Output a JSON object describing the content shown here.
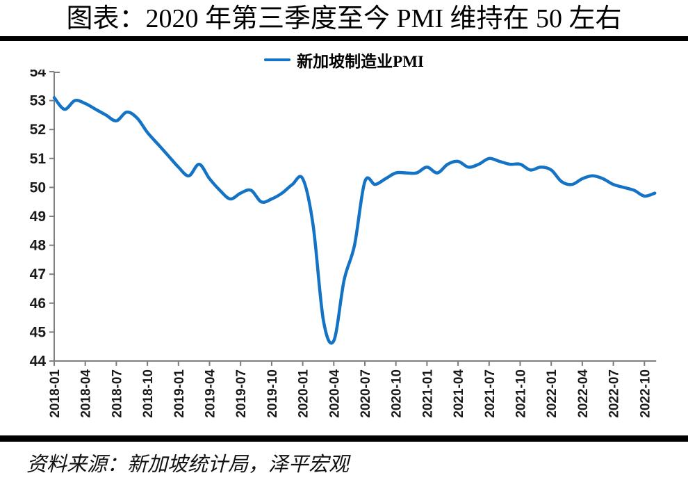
{
  "title": "图表：2020 年第三季度至今 PMI 维持在 50 左右",
  "legend": {
    "label": "新加坡制造业PMI"
  },
  "source": {
    "text": "资料来源：新加坡统计局，泽平宏观"
  },
  "colors": {
    "line": "#1473C4",
    "axis": "#7F7F7F",
    "tick_label": "#1A1A1A",
    "rule": "#000000"
  },
  "chart_data": {
    "type": "line",
    "title": "",
    "xlabel": "",
    "ylabel": "",
    "ylim": [
      44,
      54
    ],
    "yticks": [
      44,
      45,
      46,
      47,
      48,
      49,
      50,
      51,
      52,
      53,
      54
    ],
    "grid": false,
    "legend_position": "top",
    "x_tick_every_months": 3,
    "x_tick_labels": [
      "2018-01",
      "2018-04",
      "2018-07",
      "2018-10",
      "2019-01",
      "2019-04",
      "2019-07",
      "2019-10",
      "2020-01",
      "2020-04",
      "2020-07",
      "2020-10",
      "2021-01",
      "2021-04",
      "2021-07",
      "2021-10",
      "2022-01",
      "2022-04",
      "2022-07",
      "2022-10"
    ],
    "x": [
      "2018-01",
      "2018-02",
      "2018-03",
      "2018-04",
      "2018-05",
      "2018-06",
      "2018-07",
      "2018-08",
      "2018-09",
      "2018-10",
      "2018-11",
      "2018-12",
      "2019-01",
      "2019-02",
      "2019-03",
      "2019-04",
      "2019-05",
      "2019-06",
      "2019-07",
      "2019-08",
      "2019-09",
      "2019-10",
      "2019-11",
      "2019-12",
      "2020-01",
      "2020-02",
      "2020-03",
      "2020-04",
      "2020-05",
      "2020-06",
      "2020-07",
      "2020-08",
      "2020-09",
      "2020-10",
      "2020-11",
      "2020-12",
      "2021-01",
      "2021-02",
      "2021-03",
      "2021-04",
      "2021-05",
      "2021-06",
      "2021-07",
      "2021-08",
      "2021-09",
      "2021-10",
      "2021-11",
      "2021-12",
      "2022-01",
      "2022-02",
      "2022-03",
      "2022-04",
      "2022-05",
      "2022-06",
      "2022-07",
      "2022-08",
      "2022-09",
      "2022-10",
      "2022-11"
    ],
    "series": [
      {
        "name": "新加坡制造业PMI",
        "values": [
          53.1,
          52.7,
          53.0,
          52.9,
          52.7,
          52.5,
          52.3,
          52.6,
          52.4,
          51.9,
          51.5,
          51.1,
          50.7,
          50.4,
          50.8,
          50.3,
          49.9,
          49.6,
          49.8,
          49.9,
          49.5,
          49.6,
          49.8,
          50.1,
          50.3,
          48.7,
          45.4,
          44.7,
          46.8,
          48.0,
          50.2,
          50.1,
          50.3,
          50.5,
          50.5,
          50.5,
          50.7,
          50.5,
          50.8,
          50.9,
          50.7,
          50.8,
          51.0,
          50.9,
          50.8,
          50.8,
          50.6,
          50.7,
          50.6,
          50.2,
          50.1,
          50.3,
          50.4,
          50.3,
          50.1,
          50.0,
          49.9,
          49.7,
          49.8
        ]
      }
    ]
  }
}
